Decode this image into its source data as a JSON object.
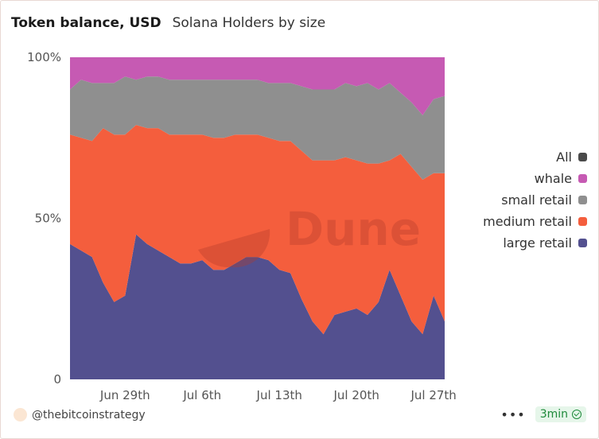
{
  "header": {
    "title": "Token balance, USD",
    "subtitle": "Solana Holders by size"
  },
  "watermark": "Dune",
  "legend": {
    "items": [
      {
        "label": "All",
        "color": "#4a4a4a"
      },
      {
        "label": "whale",
        "color": "#c65ab3"
      },
      {
        "label": "small retail",
        "color": "#8f8f8f"
      },
      {
        "label": "medium retail",
        "color": "#f45e3d"
      },
      {
        "label": "large retail",
        "color": "#53508f"
      }
    ]
  },
  "footer": {
    "author": "@thebitcoinstrategy",
    "age": "3min"
  },
  "chart_data": {
    "type": "area",
    "stacked": true,
    "percent": true,
    "title": "Token balance, USD",
    "subtitle": "Solana Holders by size",
    "x_range": [
      "2024-06-24",
      "2024-07-28"
    ],
    "x_ticks": [
      "Jun 29th",
      "Jul 6th",
      "Jul 13th",
      "Jul 20th",
      "Jul 27th"
    ],
    "x_tick_dates": [
      "2024-06-29",
      "2024-07-06",
      "2024-07-13",
      "2024-07-20",
      "2024-07-27"
    ],
    "y_ticks": [
      "0",
      "50%",
      "100%"
    ],
    "ylim": [
      0,
      100
    ],
    "legend_position": "right",
    "x": [
      "2024-06-24",
      "2024-06-25",
      "2024-06-26",
      "2024-06-27",
      "2024-06-28",
      "2024-06-29",
      "2024-06-30",
      "2024-07-01",
      "2024-07-02",
      "2024-07-03",
      "2024-07-04",
      "2024-07-05",
      "2024-07-06",
      "2024-07-07",
      "2024-07-08",
      "2024-07-09",
      "2024-07-10",
      "2024-07-11",
      "2024-07-12",
      "2024-07-13",
      "2024-07-14",
      "2024-07-15",
      "2024-07-16",
      "2024-07-17",
      "2024-07-18",
      "2024-07-19",
      "2024-07-20",
      "2024-07-21",
      "2024-07-22",
      "2024-07-23",
      "2024-07-24",
      "2024-07-25",
      "2024-07-26",
      "2024-07-27",
      "2024-07-28"
    ],
    "series": [
      {
        "name": "large retail",
        "color": "#53508f",
        "values": [
          42,
          40,
          38,
          30,
          24,
          26,
          45,
          42,
          40,
          38,
          36,
          36,
          37,
          34,
          34,
          36,
          38,
          38,
          37,
          34,
          33,
          25,
          18,
          14,
          20,
          21,
          22,
          20,
          24,
          34,
          26,
          18,
          14,
          26,
          18
        ]
      },
      {
        "name": "medium retail",
        "color": "#f45e3d",
        "values": [
          34,
          35,
          36,
          48,
          52,
          50,
          34,
          36,
          38,
          38,
          40,
          40,
          39,
          41,
          41,
          40,
          38,
          38,
          38,
          40,
          41,
          46,
          50,
          54,
          48,
          48,
          46,
          47,
          43,
          34,
          44,
          48,
          48,
          38,
          46
        ]
      },
      {
        "name": "small retail",
        "color": "#8f8f8f",
        "values": [
          14,
          18,
          18,
          14,
          16,
          18,
          14,
          16,
          16,
          17,
          17,
          17,
          17,
          18,
          18,
          17,
          17,
          17,
          17,
          18,
          18,
          20,
          22,
          22,
          22,
          23,
          23,
          25,
          23,
          24,
          19,
          20,
          20,
          23,
          24
        ]
      },
      {
        "name": "whale",
        "color": "#c65ab3",
        "values": [
          10,
          7,
          8,
          8,
          8,
          6,
          7,
          6,
          6,
          7,
          7,
          7,
          7,
          7,
          7,
          7,
          7,
          7,
          8,
          8,
          8,
          9,
          10,
          10,
          10,
          8,
          9,
          8,
          10,
          8,
          11,
          14,
          18,
          13,
          12
        ]
      }
    ]
  }
}
